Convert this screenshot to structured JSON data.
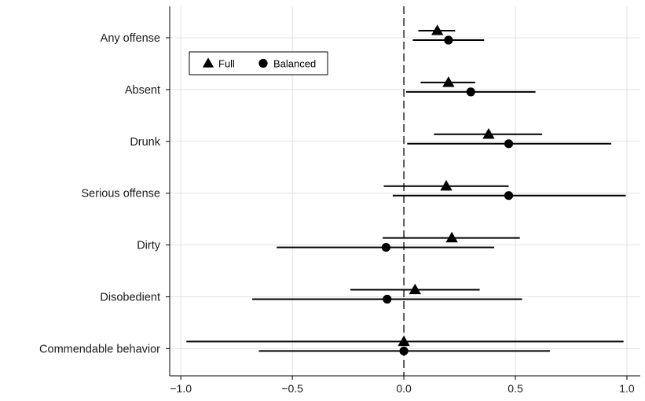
{
  "chart_data": {
    "type": "forest",
    "title": "",
    "xlabel": "",
    "ylabel": "",
    "xlim": [
      -1.05,
      1.06
    ],
    "x_ticks": [
      -1.0,
      -0.5,
      0.0,
      0.5,
      1.0
    ],
    "x_tick_labels": [
      "−1.0",
      "−0.5",
      "0.0",
      "0.5",
      "1.0"
    ],
    "reference_line": 0,
    "grid": true,
    "legend_position": "top-left",
    "categories": [
      "Any offense",
      "Absent",
      "Drunk",
      "Serious offense",
      "Dirty",
      "Disobedient",
      "Commendable behavior"
    ],
    "series": [
      {
        "name": "Full",
        "marker": "triangle",
        "estimates": [
          0.15,
          0.2,
          0.38,
          0.19,
          0.215,
          0.05,
          0.0
        ],
        "lower": [
          0.065,
          0.075,
          0.135,
          -0.09,
          -0.095,
          -0.24,
          -0.975
        ],
        "upper": [
          0.23,
          0.32,
          0.62,
          0.47,
          0.52,
          0.34,
          0.985
        ]
      },
      {
        "name": "Balanced",
        "marker": "circle",
        "estimates": [
          0.2,
          0.3,
          0.47,
          0.47,
          -0.08,
          -0.075,
          0.0
        ],
        "lower": [
          0.04,
          0.01,
          0.015,
          -0.05,
          -0.57,
          -0.68,
          -0.65
        ],
        "upper": [
          0.36,
          0.59,
          0.93,
          0.995,
          0.405,
          0.53,
          0.655
        ]
      }
    ]
  },
  "legend": {
    "items": [
      {
        "label": "Full",
        "marker": "triangle"
      },
      {
        "label": "Balanced",
        "marker": "circle"
      }
    ]
  }
}
